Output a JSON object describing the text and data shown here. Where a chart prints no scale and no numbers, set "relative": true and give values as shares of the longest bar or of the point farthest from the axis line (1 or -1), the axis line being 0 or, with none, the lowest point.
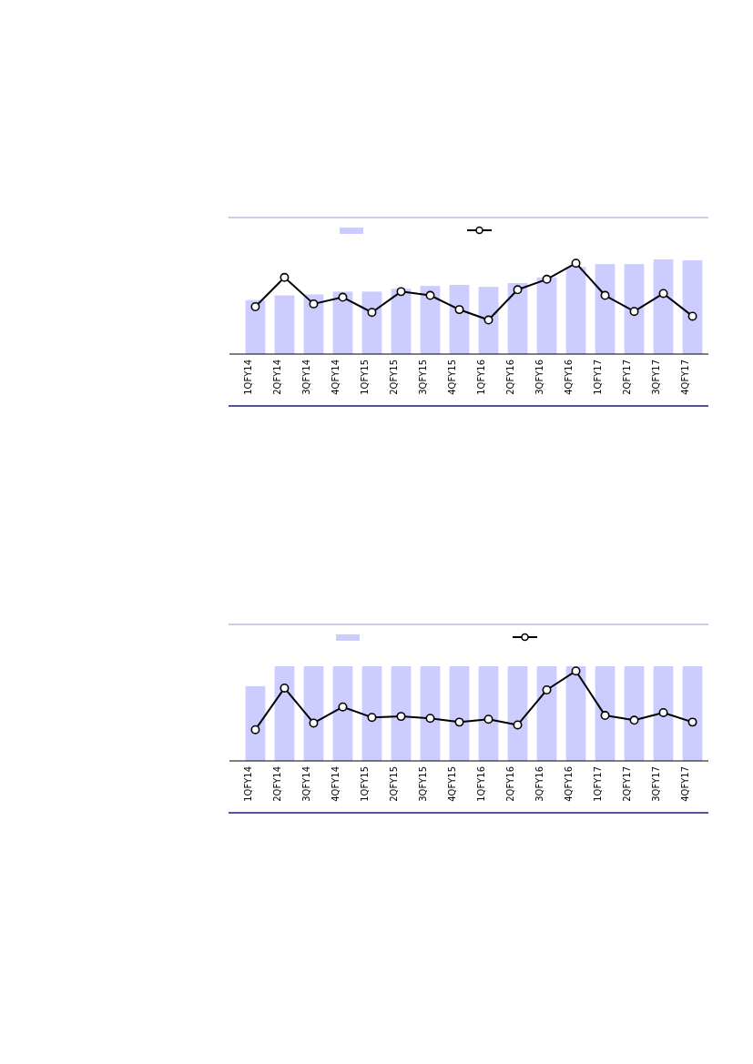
{
  "chart_data": [
    {
      "type": "bar",
      "relative": true,
      "categories": [
        "1QFY14",
        "2QFY14",
        "3QFY14",
        "4QFY14",
        "1QFY15",
        "2QFY15",
        "3QFY15",
        "4QFY15",
        "1QFY16",
        "2QFY16",
        "3QFY16",
        "4QFY16",
        "1QFY17",
        "2QFY17",
        "3QFY17",
        "4QFY17"
      ],
      "series": [
        {
          "color": "#ccccff",
          "values": [
            0.57,
            0.62,
            0.63,
            0.66,
            0.66,
            0.69,
            0.72,
            0.73,
            0.71,
            0.75,
            0.81,
            0.92,
            0.95,
            0.95,
            1.0,
            0.99
          ]
        },
        {
          "type": "line",
          "color": "#000000",
          "marker": "circle",
          "line_style": "solid",
          "values": [
            0.5,
            0.81,
            0.53,
            0.6,
            0.44,
            0.66,
            0.62,
            0.47,
            0.36,
            0.68,
            0.79,
            0.96,
            0.62,
            0.45,
            0.64,
            0.4
          ]
        }
      ]
    },
    {
      "type": "bar",
      "relative": true,
      "categories": [
        "1QFY14",
        "2QFY14",
        "3QFY14",
        "4QFY14",
        "1QFY15",
        "2QFY15",
        "3QFY15",
        "4QFY15",
        "1QFY16",
        "2QFY16",
        "3QFY16",
        "4QFY16",
        "1QFY17",
        "2QFY17",
        "3QFY17",
        "4QFY17"
      ],
      "series": [
        {
          "color": "#ccccff",
          "values": [
            0.79,
            1,
            1,
            1,
            1,
            1,
            1,
            1,
            1,
            1,
            1,
            1,
            1,
            1,
            1,
            1
          ]
        },
        {
          "type": "line",
          "color": "#000000",
          "marker": "circle",
          "line_style": "solid",
          "values": [
            0.33,
            0.77,
            0.4,
            0.57,
            0.46,
            0.47,
            0.45,
            0.41,
            0.44,
            0.38,
            0.75,
            0.95,
            0.48,
            0.43,
            0.51,
            0.41
          ]
        }
      ]
    }
  ]
}
